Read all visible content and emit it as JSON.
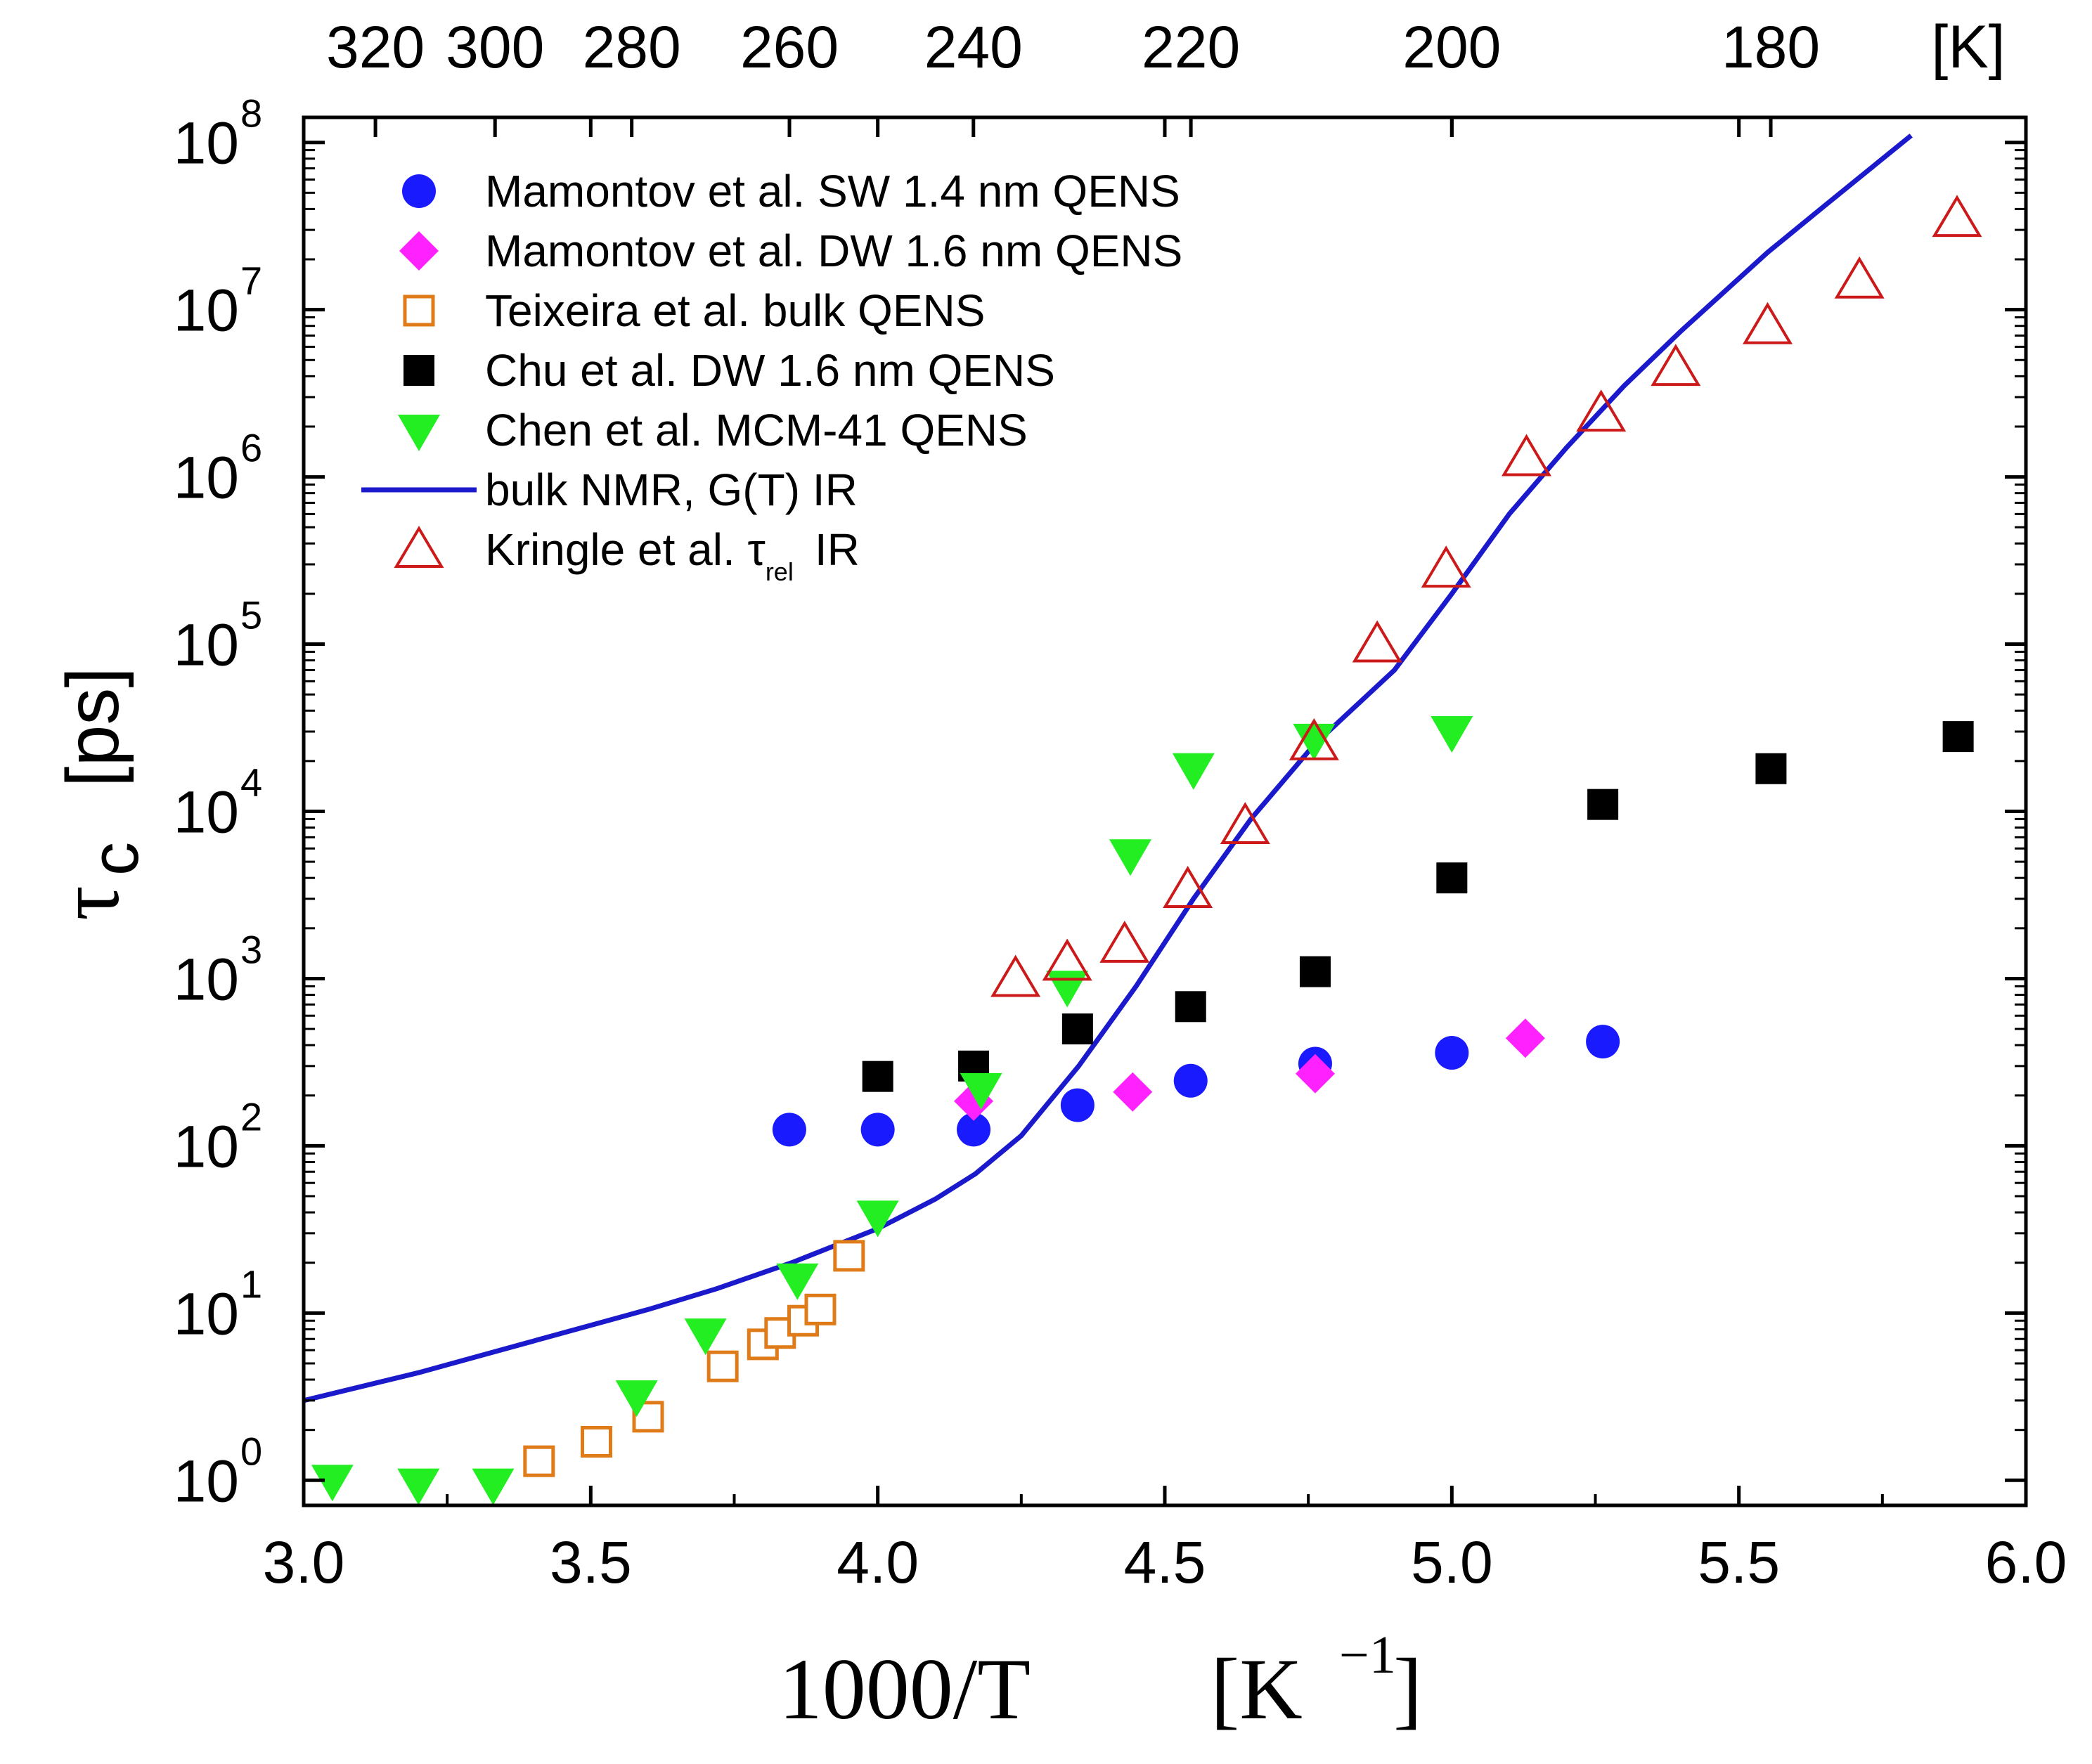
{
  "chart_data": {
    "type": "scatter",
    "title": "",
    "xlabel": "1000/T",
    "xlabel_unit": "[K",
    "xlabel_unit_exp": "−1",
    "xlabel_unit_close": "]",
    "ylabel_symbol": "τ",
    "ylabel_sub": "c",
    "ylabel_unit": "[ps]",
    "top_axis_unit": "[K]",
    "xlim": [
      3.0,
      6.0
    ],
    "ylim_log10": [
      -0.15,
      8.15
    ],
    "yscale": "log",
    "x_ticks": [
      "3.0",
      "3.5",
      "4.0",
      "4.5",
      "5.0",
      "5.5",
      "6.0"
    ],
    "y_tick_exponents": [
      "0",
      "1",
      "2",
      "3",
      "4",
      "5",
      "6",
      "7",
      "8"
    ],
    "y_tick_base": "10",
    "top_ticks_K": [
      320,
      300,
      280,
      260,
      240,
      220,
      200,
      180
    ],
    "legend_position": "top-left",
    "series": [
      {
        "name": "Mamontov et al. SW 1.4 nm QENS",
        "marker": "circle",
        "color": "#1a1aff",
        "points": [
          [
            3.846,
            125
          ],
          [
            4.0,
            125
          ],
          [
            4.167,
            125
          ],
          [
            4.348,
            175
          ],
          [
            4.545,
            245
          ],
          [
            4.762,
            310
          ],
          [
            5.0,
            360
          ],
          [
            5.263,
            420
          ]
        ]
      },
      {
        "name": "Mamontov et al. DW 1.6 nm QENS",
        "marker": "diamond",
        "color": "#ff22ff",
        "points": [
          [
            4.167,
            185
          ],
          [
            4.444,
            210
          ],
          [
            4.762,
            270
          ],
          [
            5.128,
            440
          ]
        ]
      },
      {
        "name": "Teixeira et al. bulk QENS",
        "marker": "square-open",
        "color": "#e07b1a",
        "points": [
          [
            3.41,
            1.3
          ],
          [
            3.51,
            1.7
          ],
          [
            3.6,
            2.4
          ],
          [
            3.73,
            4.8
          ],
          [
            3.8,
            6.5
          ],
          [
            3.83,
            7.6
          ],
          [
            3.87,
            9.0
          ],
          [
            3.9,
            10.5
          ],
          [
            3.95,
            22
          ]
        ]
      },
      {
        "name": "Chu et al. DW 1.6 nm QENS",
        "marker": "square",
        "color": "#000000",
        "points": [
          [
            4.0,
            260
          ],
          [
            4.167,
            300
          ],
          [
            4.348,
            500
          ],
          [
            4.545,
            680
          ],
          [
            4.762,
            1100
          ],
          [
            5.0,
            4000
          ],
          [
            5.263,
            11000
          ],
          [
            5.556,
            18000
          ],
          [
            5.882,
            28000
          ]
        ]
      },
      {
        "name": "Chen et al. MCM-41 QENS",
        "marker": "triangle-down",
        "color": "#22ee22",
        "points": [
          [
            3.05,
            1.0
          ],
          [
            3.2,
            0.95
          ],
          [
            3.33,
            0.95
          ],
          [
            3.58,
            3.2
          ],
          [
            3.7,
            7.5
          ],
          [
            3.86,
            16
          ],
          [
            4.0,
            38
          ],
          [
            4.18,
            220
          ],
          [
            4.33,
            900
          ],
          [
            4.44,
            5500
          ],
          [
            4.55,
            18000
          ],
          [
            4.76,
            27000
          ],
          [
            5.0,
            30000
          ]
        ]
      },
      {
        "name": "bulk NMR, G(T) IR",
        "marker": "line",
        "color": "#1a1acc",
        "points": [
          [
            3.0,
            3.0
          ],
          [
            3.2,
            4.4
          ],
          [
            3.4,
            6.8
          ],
          [
            3.6,
            10.5
          ],
          [
            3.72,
            14
          ],
          [
            3.85,
            20
          ],
          [
            4.0,
            32
          ],
          [
            4.1,
            48
          ],
          [
            4.17,
            68
          ],
          [
            4.25,
            115
          ],
          [
            4.35,
            300
          ],
          [
            4.45,
            900
          ],
          [
            4.55,
            3000
          ],
          [
            4.65,
            9000
          ],
          [
            4.76,
            25000
          ],
          [
            4.9,
            70000
          ],
          [
            5.0,
            200000
          ],
          [
            5.1,
            600000
          ],
          [
            5.2,
            1500000
          ],
          [
            5.3,
            3500000
          ],
          [
            5.4,
            7500000
          ],
          [
            5.55,
            22000000
          ],
          [
            5.65,
            42000000
          ],
          [
            5.8,
            110000000
          ]
        ]
      },
      {
        "name": "Kringle et al. τ",
        "name_sub": "rel",
        "name_suffix": "IR",
        "marker": "triangle-up-open",
        "color": "#cc1a1a",
        "points": [
          [
            4.24,
            1000
          ],
          [
            4.33,
            1250
          ],
          [
            4.43,
            1600
          ],
          [
            4.54,
            3400
          ],
          [
            4.64,
            8200
          ],
          [
            4.76,
            26000
          ],
          [
            4.87,
            100000
          ],
          [
            4.99,
            280000
          ],
          [
            5.13,
            1300000
          ],
          [
            5.26,
            2400000
          ],
          [
            5.39,
            4500000
          ],
          [
            5.55,
            8000000
          ],
          [
            5.71,
            15000000
          ],
          [
            5.88,
            35000000
          ]
        ]
      }
    ]
  }
}
